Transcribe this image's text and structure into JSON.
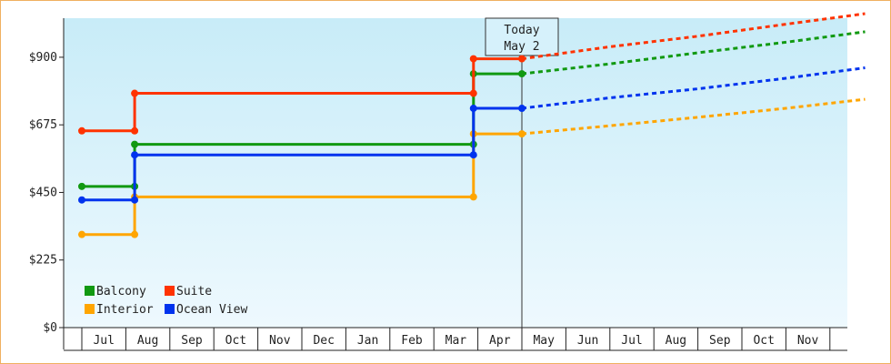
{
  "chart_data": {
    "type": "line",
    "subtype": "step-with-forecast",
    "y_axis": {
      "ticks": [
        "$0",
        "$225",
        "$450",
        "$675",
        "$900"
      ],
      "tick_values": [
        0,
        225,
        450,
        675,
        900
      ],
      "ylim": [
        0,
        1030
      ]
    },
    "x_axis": {
      "months": [
        "Jul",
        "Aug",
        "Sep",
        "Oct",
        "Nov",
        "Dec",
        "Jan",
        "Feb",
        "Mar",
        "Apr",
        "May",
        "Jun",
        "Jul",
        "Aug",
        "Sep",
        "Oct",
        "Nov"
      ]
    },
    "today": {
      "line1": "Today",
      "line2": "May 2",
      "month_pos": 10.0
    },
    "grid": false,
    "legend_position": "bottom-left",
    "series": [
      {
        "name": "Balcony",
        "color": "#119911",
        "history": [
          [
            0,
            470
          ],
          [
            1.2,
            470
          ],
          [
            1.2,
            610
          ],
          [
            8.9,
            610
          ],
          [
            8.9,
            845
          ],
          [
            10.0,
            845
          ]
        ],
        "forecast": [
          [
            10.0,
            845
          ],
          [
            12,
            878
          ],
          [
            14,
            915
          ],
          [
            16,
            950
          ],
          [
            17.8,
            985
          ]
        ],
        "markers": [
          [
            0,
            470
          ],
          [
            1.2,
            470
          ],
          [
            1.2,
            610
          ],
          [
            8.9,
            610
          ],
          [
            8.9,
            845
          ],
          [
            10.0,
            845
          ]
        ]
      },
      {
        "name": "Suite",
        "color": "#ff3300",
        "history": [
          [
            0,
            655
          ],
          [
            1.2,
            655
          ],
          [
            1.2,
            780
          ],
          [
            8.9,
            780
          ],
          [
            8.9,
            895
          ],
          [
            10.0,
            895
          ]
        ],
        "forecast": [
          [
            10.0,
            895
          ],
          [
            12,
            935
          ],
          [
            14,
            970
          ],
          [
            16,
            1010
          ],
          [
            17.8,
            1045
          ]
        ],
        "markers": [
          [
            0,
            655
          ],
          [
            1.2,
            655
          ],
          [
            1.2,
            780
          ],
          [
            8.9,
            780
          ],
          [
            8.9,
            895
          ],
          [
            10.0,
            895
          ]
        ]
      },
      {
        "name": "Interior",
        "color": "#ffa500",
        "history": [
          [
            0,
            310
          ],
          [
            1.2,
            310
          ],
          [
            1.2,
            435
          ],
          [
            8.9,
            435
          ],
          [
            8.9,
            645
          ],
          [
            10.0,
            645
          ]
        ],
        "forecast": [
          [
            10.0,
            645
          ],
          [
            12,
            672
          ],
          [
            14,
            700
          ],
          [
            16,
            730
          ],
          [
            17.8,
            760
          ]
        ],
        "markers": [
          [
            0,
            310
          ],
          [
            1.2,
            310
          ],
          [
            1.2,
            435
          ],
          [
            8.9,
            435
          ],
          [
            8.9,
            645
          ],
          [
            10.0,
            645
          ]
        ]
      },
      {
        "name": "Ocean View",
        "color": "#0033ee",
        "history": [
          [
            0,
            425
          ],
          [
            1.2,
            425
          ],
          [
            1.2,
            575
          ],
          [
            8.9,
            575
          ],
          [
            8.9,
            730
          ],
          [
            10.0,
            730
          ]
        ],
        "forecast": [
          [
            10.0,
            730
          ],
          [
            12,
            765
          ],
          [
            14,
            795
          ],
          [
            16,
            830
          ],
          [
            17.8,
            865
          ]
        ],
        "markers": [
          [
            0,
            425
          ],
          [
            1.2,
            425
          ],
          [
            1.2,
            575
          ],
          [
            8.9,
            575
          ],
          [
            8.9,
            730
          ],
          [
            10.0,
            730
          ]
        ]
      }
    ],
    "legend": [
      {
        "name": "Balcony",
        "color": "#119911"
      },
      {
        "name": "Suite",
        "color": "#ff3300"
      },
      {
        "name": "Interior",
        "color": "#ffa500"
      },
      {
        "name": "Ocean View",
        "color": "#0033ee"
      }
    ],
    "background_gradient": [
      "#c8ecf8",
      "#eef9fe"
    ]
  }
}
